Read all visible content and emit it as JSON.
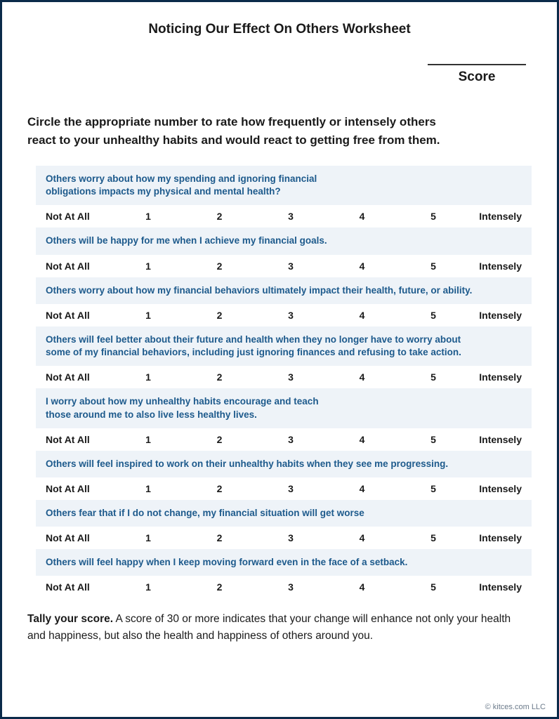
{
  "title": "Noticing Our Effect On Others Worksheet",
  "score_label": "Score",
  "instructions_line1": "Circle the appropriate number to rate how frequently or intensely others",
  "instructions_line2": "react to your unhealthy habits and would react to getting free from them.",
  "scale_left": "Not At All",
  "scale_right": "Intensely",
  "scale_numbers": [
    "1",
    "2",
    "3",
    "4",
    "5"
  ],
  "questions": [
    "Others worry about how my spending and ignoring financial\nobligations impacts my physical and mental health?",
    "Others will be happy for me when I achieve my financial goals.",
    "Others worry about how my financial behaviors ultimately impact their health, future, or ability.",
    "Others will feel better about their future and health when they no longer have to worry about\nsome of my financial behaviors, including just ignoring finances and refusing to take action.",
    "I worry about how my unhealthy habits encourage and teach\nthose around me to also live less healthy lives.",
    "Others will feel inspired to work on their unhealthy habits when they see me progressing.",
    "Others fear that if I do not change, my financial situation will get worse",
    "Others will feel happy when I keep moving forward even in the face of a setback."
  ],
  "tally_bold": "Tally your score.",
  "tally_rest": " A score of 30 or more indicates that your change will enhance not only your health and happiness, but also the health and happiness of others around you.",
  "copyright": "© kitces.com LLC",
  "colors": {
    "border": "#0a2a4a",
    "q_bg": "#eef3f8",
    "q_text": "#1d5a8c",
    "body_text": "#1a1a1a",
    "copyright": "#6b7a8a"
  }
}
